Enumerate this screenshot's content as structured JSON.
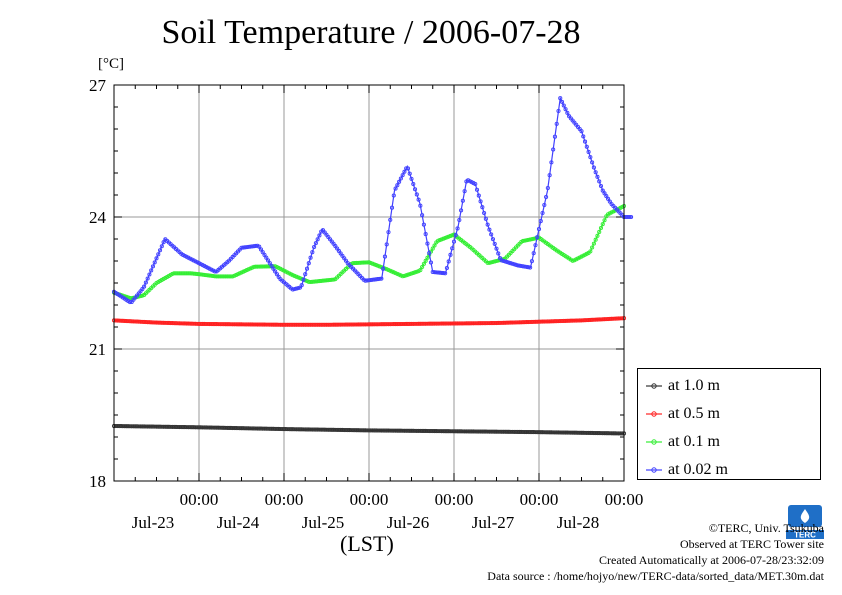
{
  "page": {
    "title": "Soil Temperature / 2006-07-28",
    "y_unit": "[°C]",
    "x_unit": "(LST)"
  },
  "credits": {
    "line1": "©TERC, Univ. Tsukuba",
    "line2": "Observed at TERC Tower site",
    "line3": "Created Automatically at 2006-07-28/23:32:09",
    "line4": "Data source : /home/hojyo/new/TERC-data/sorted_data/MET.30m.dat"
  },
  "logo": {
    "label": "TERC",
    "color": "#1f6fc7"
  },
  "chart_data": {
    "type": "line",
    "title": "Soil Temperature / 2006-07-28",
    "ylabel": "[°C]",
    "xlabel": "(LST)",
    "ylim": [
      18,
      27
    ],
    "yticks": [
      18,
      21,
      24,
      27
    ],
    "xlim": [
      -1.0,
      5.0
    ],
    "x_unit": "days since 2006-07-23 00:00 LST",
    "xticks": [
      {
        "x": 0,
        "time": "00:00",
        "date": "Jul-23"
      },
      {
        "x": 1,
        "time": "00:00",
        "date": "Jul-24"
      },
      {
        "x": 2,
        "time": "00:00",
        "date": "Jul-25"
      },
      {
        "x": 3,
        "time": "00:00",
        "date": "Jul-26"
      },
      {
        "x": 4,
        "time": "00:00",
        "date": "Jul-27"
      },
      {
        "x": 5,
        "time": "00:00",
        "date": "Jul-28"
      }
    ],
    "grid": true,
    "legend_position": "bottom-right outside",
    "series": [
      {
        "name": "at 1.0 m",
        "color": "#333333",
        "x": [
          -1.0,
          0.0,
          1.0,
          2.0,
          3.0,
          4.0,
          5.0
        ],
        "y": [
          19.25,
          19.22,
          19.18,
          19.15,
          19.13,
          19.11,
          19.08
        ]
      },
      {
        "name": "at 0.5 m",
        "color": "#ff2020",
        "x": [
          -1.0,
          -0.5,
          0.0,
          0.5,
          1.0,
          1.5,
          2.0,
          2.5,
          3.0,
          3.5,
          4.0,
          4.5,
          5.0
        ],
        "y": [
          21.65,
          21.6,
          21.57,
          21.56,
          21.55,
          21.55,
          21.56,
          21.57,
          21.58,
          21.59,
          21.62,
          21.65,
          21.7
        ]
      },
      {
        "name": "at 0.1 m",
        "color": "#33ee33",
        "x": [
          -1.0,
          -0.8,
          -0.65,
          -0.5,
          -0.3,
          -0.1,
          0.0,
          0.2,
          0.4,
          0.65,
          0.9,
          1.1,
          1.3,
          1.6,
          1.8,
          2.0,
          2.2,
          2.4,
          2.6,
          2.8,
          3.0,
          3.2,
          3.4,
          3.6,
          3.8,
          4.0,
          4.2,
          4.4,
          4.6,
          4.8,
          5.0
        ],
        "y": [
          22.28,
          22.15,
          22.22,
          22.5,
          22.72,
          22.72,
          22.7,
          22.65,
          22.65,
          22.87,
          22.88,
          22.68,
          22.52,
          22.58,
          22.95,
          22.97,
          22.82,
          22.65,
          22.78,
          23.45,
          23.6,
          23.3,
          22.95,
          23.05,
          23.45,
          23.53,
          23.25,
          23.0,
          23.2,
          24.05,
          24.25
        ]
      },
      {
        "name": "at 0.02 m",
        "color": "#4040ff",
        "x": [
          -1.0,
          -0.8,
          -0.65,
          -0.4,
          -0.2,
          0.0,
          0.2,
          0.35,
          0.5,
          0.7,
          0.95,
          1.1,
          1.2,
          1.35,
          1.45,
          1.6,
          1.75,
          1.95,
          2.15,
          2.3,
          2.45,
          2.6,
          2.75,
          2.9,
          3.05,
          3.15,
          3.25,
          3.4,
          3.55,
          3.75,
          3.9,
          4.1,
          4.25,
          4.35,
          4.5,
          4.65,
          4.75,
          4.85,
          5.0,
          5.1
        ],
        "y": [
          22.3,
          22.05,
          22.4,
          23.5,
          23.15,
          22.95,
          22.75,
          23.0,
          23.3,
          23.35,
          22.6,
          22.35,
          22.4,
          23.3,
          23.72,
          23.35,
          22.95,
          22.55,
          22.6,
          24.6,
          25.15,
          24.3,
          22.75,
          22.72,
          23.8,
          24.85,
          24.75,
          23.8,
          23.02,
          22.9,
          22.85,
          24.6,
          26.7,
          26.3,
          25.95,
          25.1,
          24.6,
          24.3,
          24.0,
          24.0
        ]
      }
    ]
  }
}
